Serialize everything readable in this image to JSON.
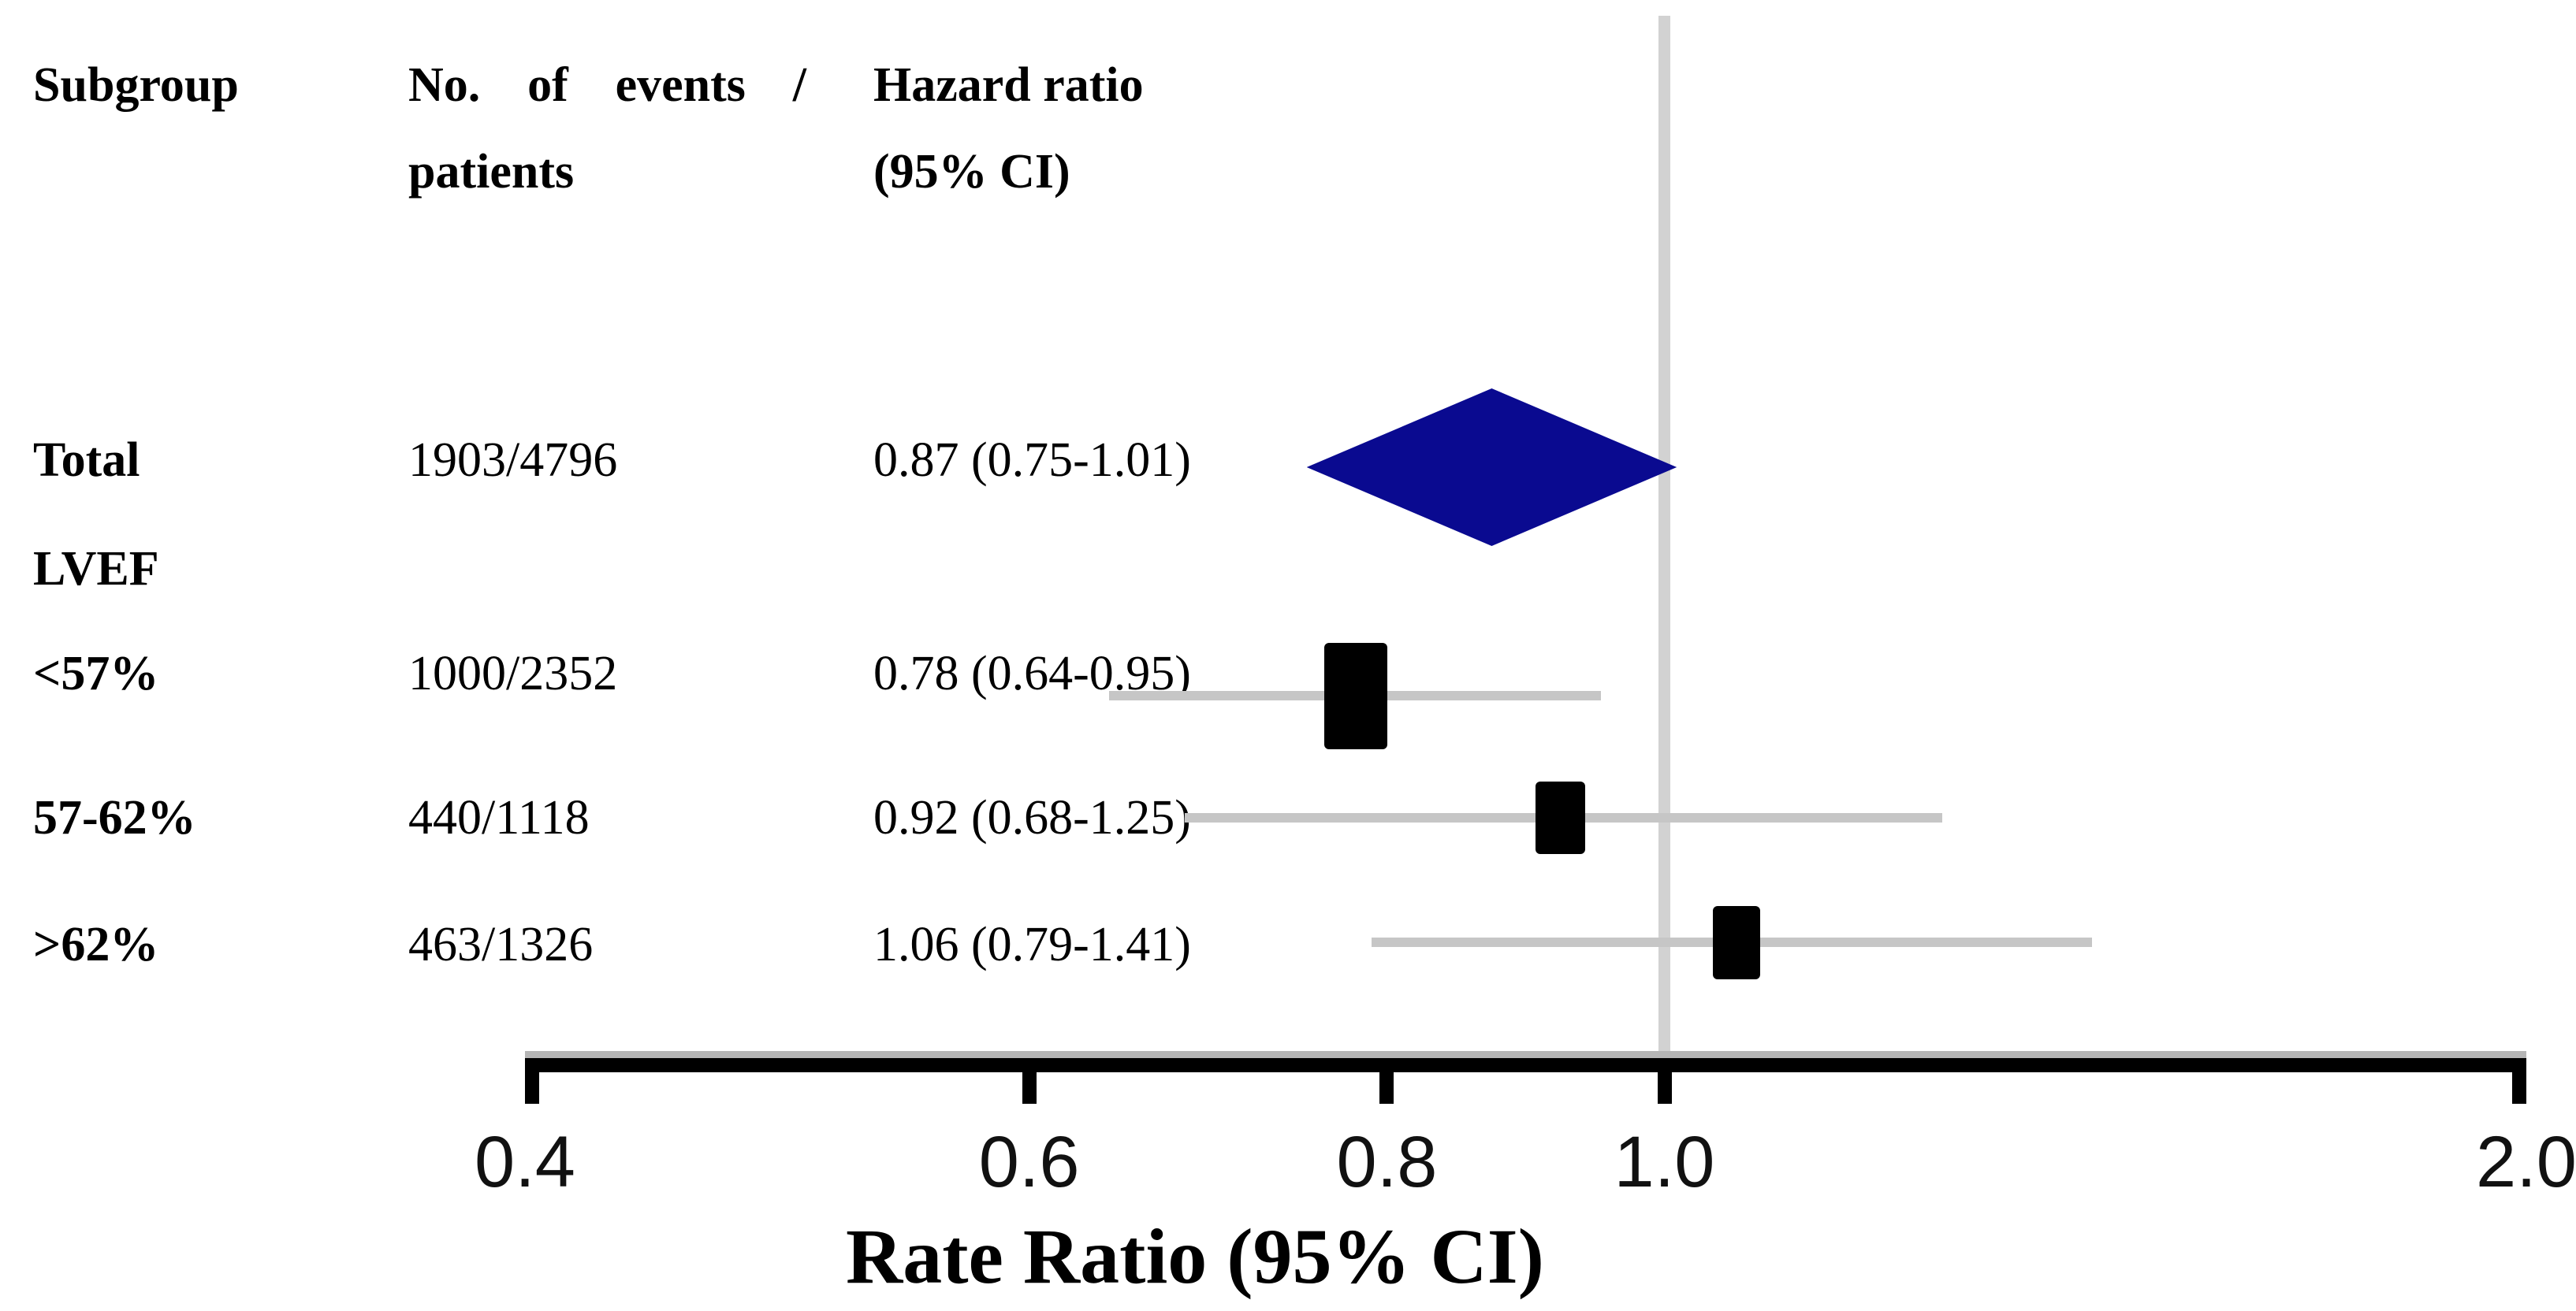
{
  "figure": {
    "columns": {
      "subgroup": "Subgroup",
      "events_words": [
        "No.",
        "of",
        "events",
        "/"
      ],
      "events_line2": "patients",
      "hazard_line1": "Hazard ratio",
      "hazard_line2": "(95% CI)"
    },
    "rows": [
      {
        "label": "Total",
        "events": "1903/4796",
        "hr_text": "0.87 (0.75-1.01)"
      },
      {
        "label": "LVEF",
        "events": "",
        "hr_text": ""
      },
      {
        "label": "<57%",
        "events": "1000/2352",
        "hr_text": "0.78 (0.64-0.95)"
      },
      {
        "label": "57-62%",
        "events": "440/1118",
        "hr_text": "0.92 (0.68-1.25)"
      },
      {
        "label": ">62%",
        "events": "463/1326",
        "hr_text": "1.06 (0.79-1.41)"
      }
    ]
  },
  "chart_data": {
    "type": "forest",
    "x_scale": "log",
    "x_range": [
      0.4,
      2.0
    ],
    "x_ticks": [
      0.4,
      0.6,
      0.8,
      1.0,
      2.0
    ],
    "x_tick_labels": [
      "0.4",
      "0.6",
      "0.8",
      "1.0",
      "2.0"
    ],
    "reference_line": 1.0,
    "xlabel": "Rate Ratio (95% CI)",
    "summary": {
      "label": "Total",
      "estimate": 0.87,
      "ci_low": 0.75,
      "ci_high": 1.01,
      "events": 1903,
      "patients": 4796,
      "marker": "diamond"
    },
    "subgroups": [
      {
        "label": "<57%",
        "estimate": 0.78,
        "ci_low": 0.64,
        "ci_high": 0.95,
        "events": 1000,
        "patients": 2352,
        "marker": "square",
        "marker_w": 80,
        "marker_h": 135
      },
      {
        "label": "57-62%",
        "estimate": 0.92,
        "ci_low": 0.68,
        "ci_high": 1.25,
        "events": 440,
        "patients": 1118,
        "marker": "square",
        "marker_w": 63,
        "marker_h": 92
      },
      {
        "label": ">62%",
        "estimate": 1.06,
        "ci_low": 0.79,
        "ci_high": 1.41,
        "events": 463,
        "patients": 1326,
        "marker": "square",
        "marker_w": 60,
        "marker_h": 93
      }
    ],
    "colors": {
      "diamond": "#0a0a90",
      "ci_line": "#c6c6c6",
      "reference_line": "#d2d2d2",
      "axis": "#000000",
      "marker": "#000000"
    }
  }
}
